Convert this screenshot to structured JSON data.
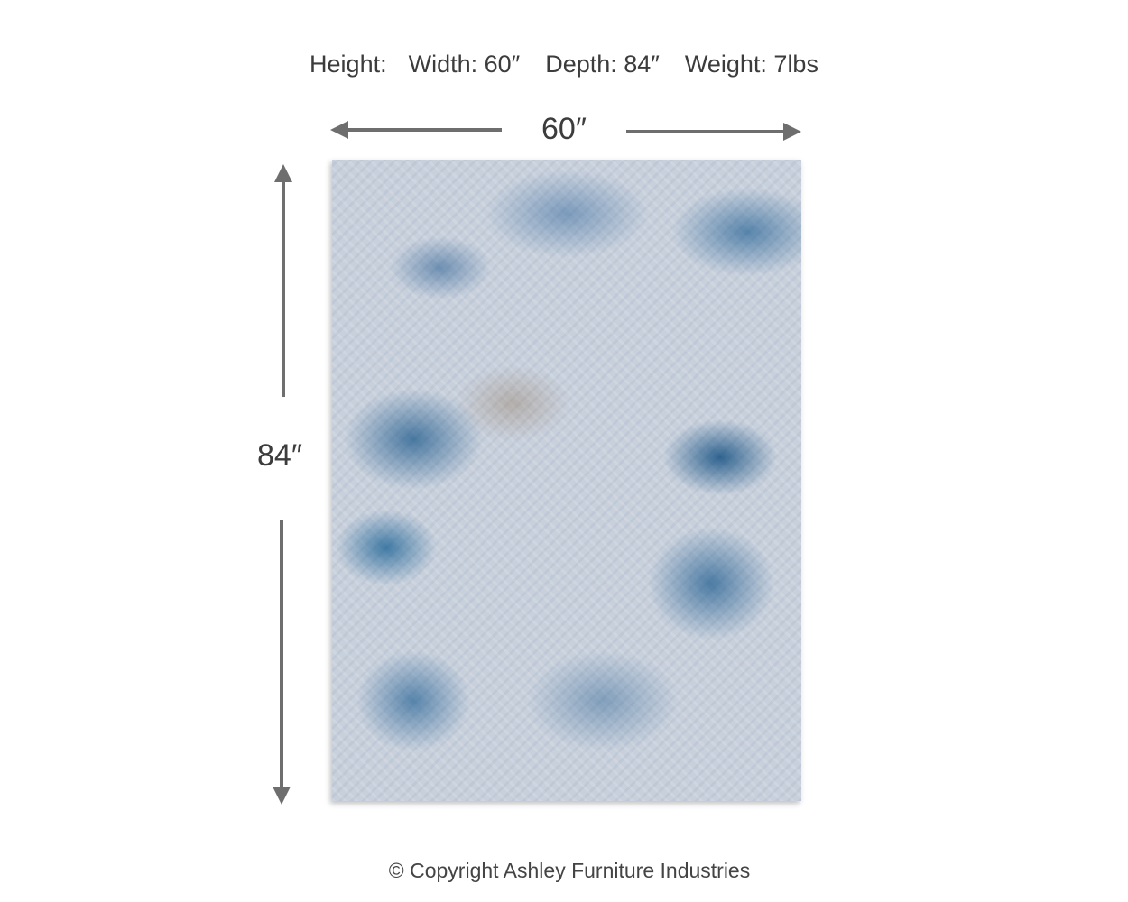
{
  "specs": {
    "height": "Height:",
    "width": "Width: 60″",
    "depth": "Depth: 84″",
    "weight": "Weight: 7lbs"
  },
  "dimensions": {
    "width_label": "60″",
    "height_label": "84″"
  },
  "colors": {
    "arrow": "#6e6e6e",
    "rug_base": "#c8d0dc",
    "rug_accent": "#2a6a9a"
  },
  "footer": {
    "copyright": "© Copyright Ashley Furniture Industries"
  }
}
